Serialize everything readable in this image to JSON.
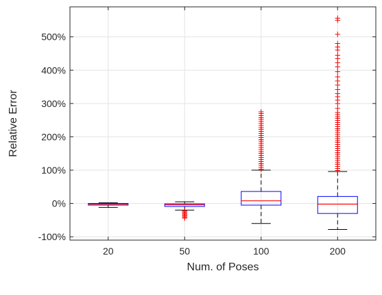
{
  "chart_data": {
    "type": "box",
    "title": "",
    "xlabel": "Num. of Poses",
    "ylabel": "Relative Error",
    "categories": [
      "20",
      "50",
      "100",
      "200"
    ],
    "ylim": [
      -110,
      590
    ],
    "yticks": [
      -100,
      0,
      100,
      200,
      300,
      400,
      500
    ],
    "ytick_labels": [
      "-100%",
      "0%",
      "100%",
      "200%",
      "300%",
      "400%",
      "500%"
    ],
    "grid": true,
    "box_color": "#0000ff",
    "median_color": "#ff0000",
    "whisker_color": "#000000",
    "outlier_color": "#ff0000",
    "outlier_marker": "+",
    "boxes": [
      {
        "category": "20",
        "whisker_low": -12,
        "q1": -5,
        "median": -2,
        "q3": 0,
        "whisker_high": 2,
        "outliers": []
      },
      {
        "category": "50",
        "whisker_low": -20,
        "q1": -9,
        "median": -4,
        "q3": -1,
        "whisker_high": 5,
        "outliers": [
          -23,
          -26,
          -29,
          -32,
          -35,
          -38,
          -41,
          -44
        ]
      },
      {
        "category": "100",
        "whisker_low": -60,
        "q1": -5,
        "median": 8,
        "q3": 36,
        "whisker_high": 100,
        "outliers": [
          102,
          108,
          114,
          120,
          126,
          132,
          138,
          144,
          150,
          156,
          162,
          168,
          174,
          180,
          186,
          192,
          198,
          204,
          210,
          216,
          222,
          228,
          234,
          240,
          246,
          252,
          258,
          264,
          270,
          275
        ]
      },
      {
        "category": "200",
        "whisker_low": -78,
        "q1": -30,
        "median": -2,
        "q3": 21,
        "whisker_high": 96,
        "outliers": [
          99,
          105,
          111,
          117,
          123,
          129,
          135,
          141,
          147,
          153,
          159,
          165,
          171,
          177,
          183,
          189,
          195,
          201,
          207,
          213,
          219,
          225,
          231,
          237,
          243,
          249,
          255,
          261,
          267,
          273,
          285,
          300,
          310,
          320,
          330,
          342,
          355,
          368,
          380,
          395,
          410,
          422,
          435,
          445,
          460,
          470,
          480,
          508,
          550,
          556
        ]
      }
    ]
  }
}
